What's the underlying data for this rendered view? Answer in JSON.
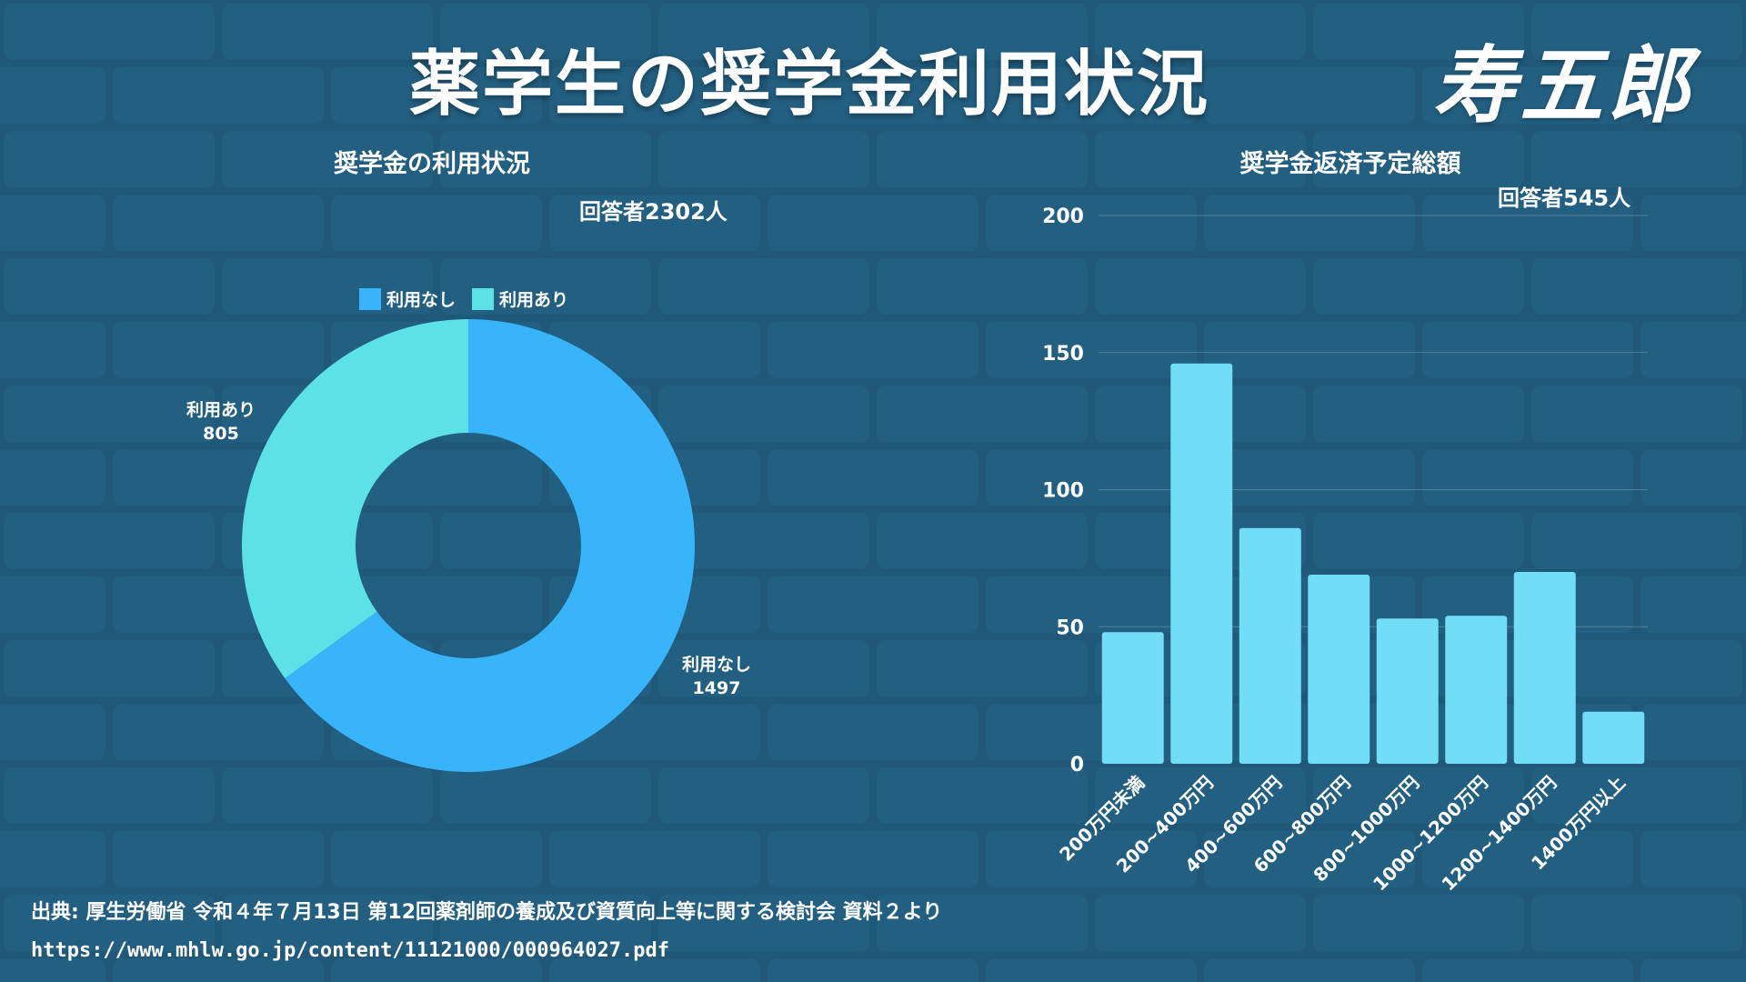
{
  "title": "薬学生の奨学金利用状況",
  "logo": "寿五郎",
  "colors": {
    "background": "#1f5878",
    "none": "#38b4fb",
    "used": "#5ce1e6",
    "bar": "#72ddf7"
  },
  "chart_data": [
    {
      "type": "pie",
      "donut": true,
      "title": "奨学金の利用状況",
      "respondents": "回答者2302人",
      "legend_position": "top",
      "labels": [
        "利用なし",
        "利用あり"
      ],
      "values": [
        1497,
        805
      ],
      "colors": [
        "#38b4fb",
        "#5ce1e6"
      ]
    },
    {
      "type": "bar",
      "title": "奨学金返済予定総額",
      "respondents": "回答者545人",
      "categories": [
        "200万円未満",
        "200~400万円",
        "400~600万円",
        "600~800万円",
        "800~1000万円",
        "1000~1200万円",
        "1200~1400万円",
        "1400万円以上"
      ],
      "values": [
        48,
        146,
        86,
        69,
        53,
        54,
        70,
        19
      ],
      "ylim": [
        0,
        200
      ],
      "yticks": [
        0,
        50,
        100,
        150,
        200
      ],
      "grid": true,
      "color": "#72ddf7"
    }
  ],
  "source": "出典: 厚生労働省 令和４年７月13日 第12回薬剤師の養成及び資質向上等に関する検討会 資料２より",
  "url": "https://www.mhlw.go.jp/content/11121000/000964027.pdf"
}
